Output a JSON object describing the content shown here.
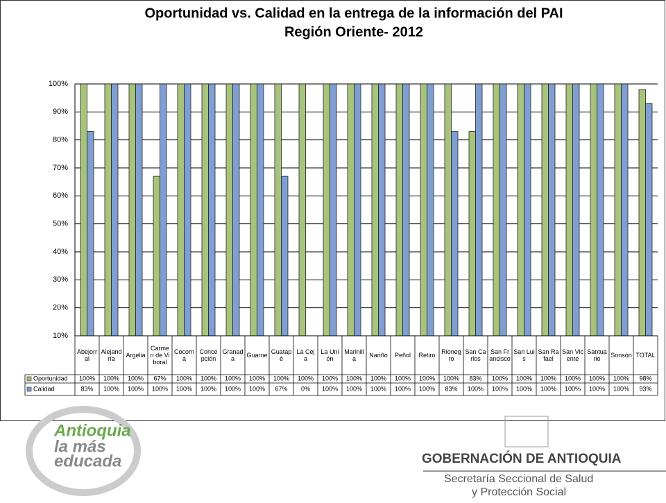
{
  "chart_data": {
    "type": "bar",
    "title": "Oportunidad vs. Calidad en la entrega de la información del PAI",
    "subtitle": "Región Oriente- 2012",
    "categories": [
      "Abejorral",
      "Alejandría",
      "Argelia",
      "Carmen de Viboral",
      "Cocorná",
      "Concepción",
      "Granada",
      "Guarne",
      "Guatapé",
      "La Ceja",
      "La Unión",
      "Marinilla",
      "Nariño",
      "Peñol",
      "Retiro",
      "Rionegro",
      "San Carlos",
      "San Francisco",
      "San Luis",
      "San Rafael",
      "San Vicente",
      "Santuario",
      "Sonsón",
      "TOTAL"
    ],
    "series": [
      {
        "name": "Oportunidad",
        "color": "#a8c47c",
        "values": [
          100,
          100,
          100,
          67,
          100,
          100,
          100,
          100,
          100,
          100,
          100,
          100,
          100,
          100,
          100,
          100,
          83,
          100,
          100,
          100,
          100,
          100,
          100,
          98
        ],
        "value_labels": [
          "100%",
          "100%",
          "100%",
          "67%",
          "100%",
          "100%",
          "100%",
          "100%",
          "100%",
          "100%",
          "100%",
          "100%",
          "100%",
          "100%",
          "100%",
          "100%",
          "83%",
          "100%",
          "100%",
          "100%",
          "100%",
          "100%",
          "100%",
          "98%"
        ]
      },
      {
        "name": "Calidad",
        "color": "#7f9fd2",
        "values": [
          83,
          100,
          100,
          100,
          100,
          100,
          100,
          100,
          67,
          0,
          100,
          100,
          100,
          100,
          100,
          83,
          100,
          100,
          100,
          100,
          100,
          100,
          100,
          93
        ],
        "value_labels": [
          "83%",
          "100%",
          "100%",
          "100%",
          "100%",
          "100%",
          "100%",
          "100%",
          "67%",
          "0%",
          "100%",
          "100%",
          "100%",
          "100%",
          "100%",
          "83%",
          "100%",
          "100%",
          "100%",
          "100%",
          "100%",
          "100%",
          "100%",
          "93%"
        ]
      }
    ],
    "ylim": [
      10,
      100
    ],
    "yticks": [
      {
        "value": 10,
        "label": "10%"
      },
      {
        "value": 20,
        "label": "20%"
      },
      {
        "value": 30,
        "label": "30%"
      },
      {
        "value": 40,
        "label": "40%"
      },
      {
        "value": 50,
        "label": "50%"
      },
      {
        "value": 60,
        "label": "60%"
      },
      {
        "value": 70,
        "label": "70%"
      },
      {
        "value": 80,
        "label": "80%"
      },
      {
        "value": 90,
        "label": "90%"
      },
      {
        "value": 100,
        "label": "100%"
      }
    ],
    "grid": true
  },
  "footer": {
    "slogan": [
      "Antioquia",
      "la más",
      "educada"
    ],
    "org": "GOBERNACIÓN DE ANTIOQUIA",
    "dept": [
      "Secretaría Seccional de Salud",
      "y Protección Social"
    ]
  }
}
